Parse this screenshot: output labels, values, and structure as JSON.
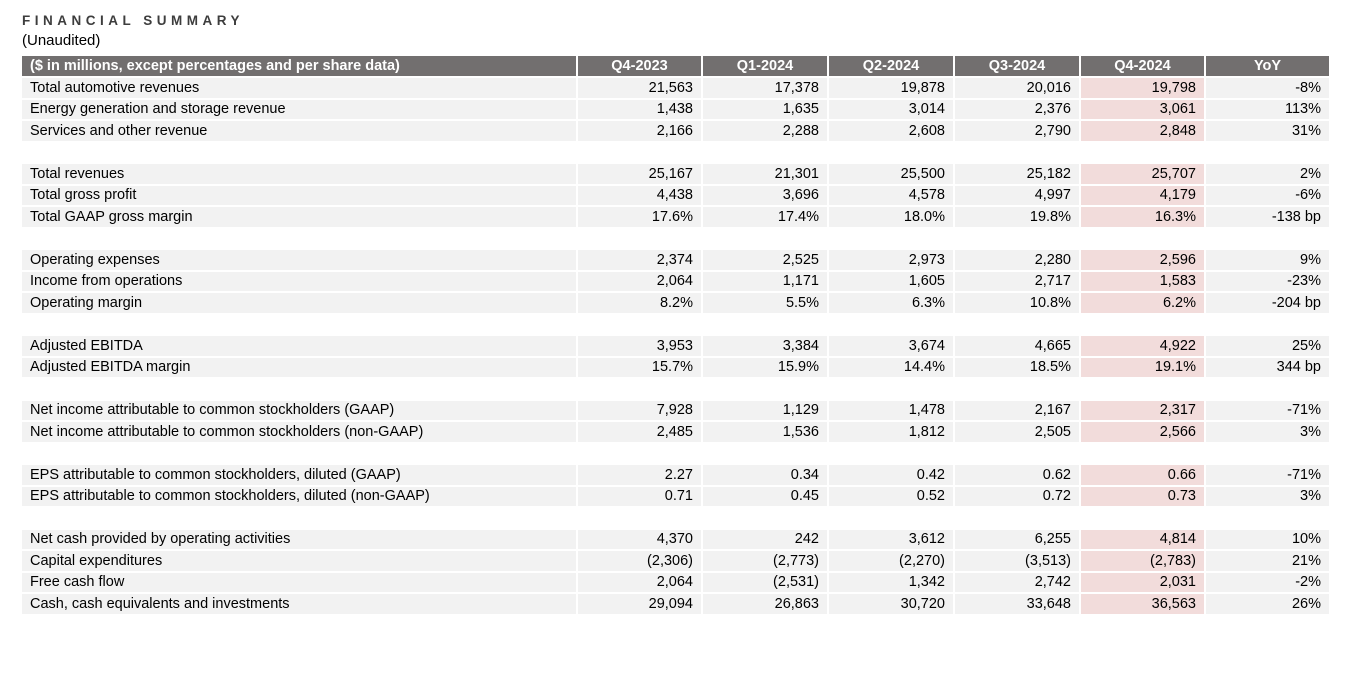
{
  "page": {
    "title": "FINANCIAL SUMMARY",
    "subtitle": "(Unaudited)"
  },
  "table": {
    "headers": [
      "($ in millions, except percentages and per share data)",
      "Q4-2023",
      "Q1-2024",
      "Q2-2024",
      "Q3-2024",
      "Q4-2024",
      "YoY"
    ],
    "highlight_column": "Q4-2024",
    "colors": {
      "header_bg": "#726F6F",
      "row_bg": "#F2F2F2",
      "highlight_bg": "#F2DCDB",
      "header_text": "#FFFFFF"
    },
    "rows": [
      {
        "label": "Total automotive revenues",
        "values": [
          "21,563",
          "17,378",
          "19,878",
          "20,016",
          "19,798"
        ],
        "yoy": "-8%"
      },
      {
        "label": "Energy generation and storage revenue",
        "values": [
          "1,438",
          "1,635",
          "3,014",
          "2,376",
          "3,061"
        ],
        "yoy": "113%"
      },
      {
        "label": "Services and other revenue",
        "values": [
          "2,166",
          "2,288",
          "2,608",
          "2,790",
          "2,848"
        ],
        "yoy": "31%"
      },
      {
        "spacer": true
      },
      {
        "label": "Total revenues",
        "values": [
          "25,167",
          "21,301",
          "25,500",
          "25,182",
          "25,707"
        ],
        "yoy": "2%"
      },
      {
        "label": "Total gross profit",
        "values": [
          "4,438",
          "3,696",
          "4,578",
          "4,997",
          "4,179"
        ],
        "yoy": "-6%"
      },
      {
        "label": "Total GAAP gross margin",
        "values": [
          "17.6%",
          "17.4%",
          "18.0%",
          "19.8%",
          "16.3%"
        ],
        "yoy": "-138 bp"
      },
      {
        "spacer": true
      },
      {
        "label": "Operating expenses",
        "values": [
          "2,374",
          "2,525",
          "2,973",
          "2,280",
          "2,596"
        ],
        "yoy": "9%"
      },
      {
        "label": "Income from operations",
        "values": [
          "2,064",
          "1,171",
          "1,605",
          "2,717",
          "1,583"
        ],
        "yoy": "-23%"
      },
      {
        "label": "Operating margin",
        "values": [
          "8.2%",
          "5.5%",
          "6.3%",
          "10.8%",
          "6.2%"
        ],
        "yoy": "-204 bp"
      },
      {
        "spacer": true
      },
      {
        "label": "Adjusted EBITDA",
        "values": [
          "3,953",
          "3,384",
          "3,674",
          "4,665",
          "4,922"
        ],
        "yoy": "25%"
      },
      {
        "label": "Adjusted EBITDA margin",
        "values": [
          "15.7%",
          "15.9%",
          "14.4%",
          "18.5%",
          "19.1%"
        ],
        "yoy": "344 bp"
      },
      {
        "spacer": true
      },
      {
        "label": "Net income attributable to common stockholders (GAAP)",
        "values": [
          "7,928",
          "1,129",
          "1,478",
          "2,167",
          "2,317"
        ],
        "yoy": "-71%"
      },
      {
        "label": "Net income attributable to common stockholders (non-GAAP)",
        "values": [
          "2,485",
          "1,536",
          "1,812",
          "2,505",
          "2,566"
        ],
        "yoy": "3%"
      },
      {
        "spacer": true
      },
      {
        "label": "EPS attributable to common stockholders, diluted (GAAP)",
        "values": [
          "2.27",
          "0.34",
          "0.42",
          "0.62",
          "0.66"
        ],
        "yoy": "-71%"
      },
      {
        "label": "EPS attributable to common stockholders, diluted (non-GAAP)",
        "values": [
          "0.71",
          "0.45",
          "0.52",
          "0.72",
          "0.73"
        ],
        "yoy": "3%"
      },
      {
        "spacer": true
      },
      {
        "label": "Net cash provided by operating activities",
        "values": [
          "4,370",
          "242",
          "3,612",
          "6,255",
          "4,814"
        ],
        "yoy": "10%"
      },
      {
        "label": "Capital expenditures",
        "values": [
          "(2,306)",
          "(2,773)",
          "(2,270)",
          "(3,513)",
          "(2,783)"
        ],
        "yoy": "21%"
      },
      {
        "label": "Free cash flow",
        "values": [
          "2,064",
          "(2,531)",
          "1,342",
          "2,742",
          "2,031"
        ],
        "yoy": "-2%"
      },
      {
        "label": "Cash, cash equivalents and investments",
        "values": [
          "29,094",
          "26,863",
          "30,720",
          "33,648",
          "36,563"
        ],
        "yoy": "26%"
      }
    ]
  }
}
